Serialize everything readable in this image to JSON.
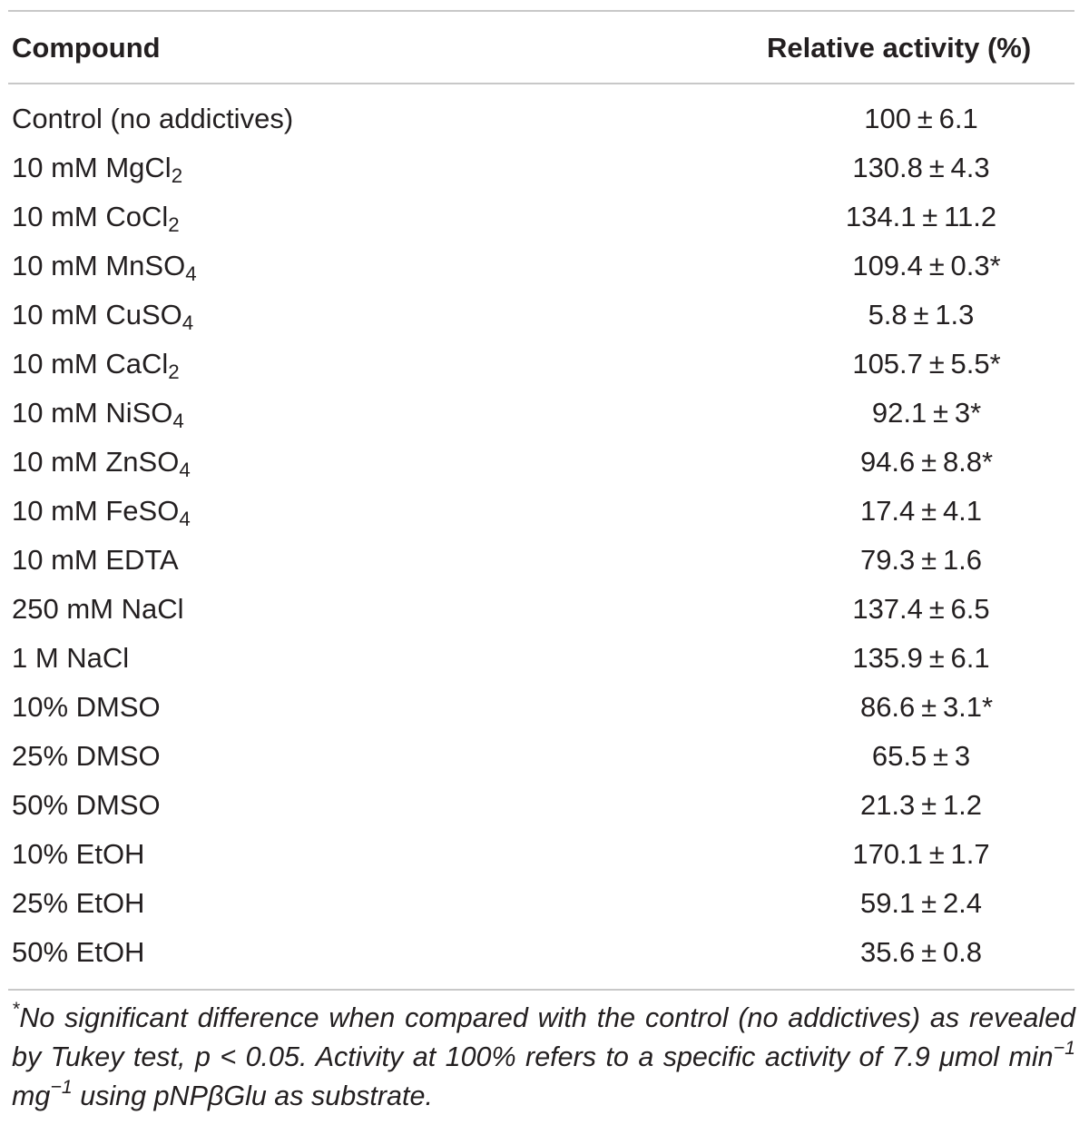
{
  "table": {
    "headers": {
      "compound": "Compound",
      "activity": "Relative activity (%)"
    },
    "rows": [
      {
        "compound": {
          "main": "Control (no addictives)",
          "sub": "",
          "tail": ""
        },
        "mean": "100",
        "sd": "6.1",
        "mark": ""
      },
      {
        "compound": {
          "main": "10 mM MgCl",
          "sub": "2",
          "tail": ""
        },
        "mean": "130.8",
        "sd": "4.3",
        "mark": ""
      },
      {
        "compound": {
          "main": "10 mM CoCl",
          "sub": "2",
          "tail": ""
        },
        "mean": "134.1",
        "sd": "11.2",
        "mark": ""
      },
      {
        "compound": {
          "main": "10 mM MnSO",
          "sub": "4",
          "tail": ""
        },
        "mean": "109.4",
        "sd": "0.3",
        "mark": "*"
      },
      {
        "compound": {
          "main": "10 mM CuSO",
          "sub": "4",
          "tail": ""
        },
        "mean": "5.8",
        "sd": "1.3",
        "mark": ""
      },
      {
        "compound": {
          "main": "10 mM CaCl",
          "sub": "2",
          "tail": ""
        },
        "mean": "105.7",
        "sd": "5.5",
        "mark": "*"
      },
      {
        "compound": {
          "main": "10 mM NiSO",
          "sub": "4",
          "tail": ""
        },
        "mean": "92.1",
        "sd": "3",
        "mark": "*"
      },
      {
        "compound": {
          "main": "10 mM ZnSO",
          "sub": "4",
          "tail": ""
        },
        "mean": "94.6",
        "sd": "8.8",
        "mark": "*"
      },
      {
        "compound": {
          "main": "10 mM FeSO",
          "sub": "4",
          "tail": ""
        },
        "mean": "17.4",
        "sd": "4.1",
        "mark": ""
      },
      {
        "compound": {
          "main": "10 mM EDTA",
          "sub": "",
          "tail": ""
        },
        "mean": "79.3",
        "sd": "1.6",
        "mark": ""
      },
      {
        "compound": {
          "main": "250 mM NaCl",
          "sub": "",
          "tail": ""
        },
        "mean": "137.4",
        "sd": "6.5",
        "mark": ""
      },
      {
        "compound": {
          "main": "1 M NaCl",
          "sub": "",
          "tail": ""
        },
        "mean": "135.9",
        "sd": "6.1",
        "mark": ""
      },
      {
        "compound": {
          "main": "10% DMSO",
          "sub": "",
          "tail": ""
        },
        "mean": "86.6",
        "sd": "3.1",
        "mark": "*"
      },
      {
        "compound": {
          "main": "25% DMSO",
          "sub": "",
          "tail": ""
        },
        "mean": "65.5",
        "sd": "3",
        "mark": ""
      },
      {
        "compound": {
          "main": "50% DMSO",
          "sub": "",
          "tail": ""
        },
        "mean": "21.3",
        "sd": "1.2",
        "mark": ""
      },
      {
        "compound": {
          "main": "10% EtOH",
          "sub": "",
          "tail": ""
        },
        "mean": "170.1",
        "sd": "1.7",
        "mark": ""
      },
      {
        "compound": {
          "main": "25% EtOH",
          "sub": "",
          "tail": ""
        },
        "mean": "59.1",
        "sd": "2.4",
        "mark": ""
      },
      {
        "compound": {
          "main": "50% EtOH",
          "sub": "",
          "tail": ""
        },
        "mean": "35.6",
        "sd": "0.8",
        "mark": ""
      }
    ],
    "pm_symbol": "±"
  },
  "footnote": {
    "marker": "*",
    "text_part1": "No significant difference when compared with the control (no addictives) as revealed by Tukey test, p < 0.05. Activity at 100% refers to a specific activity of 7.9 ",
    "mu": "μ",
    "text_part2": "mol min",
    "exp1": "−1",
    "text_part3": " mg",
    "exp2": "−1",
    "text_part4": " using pNP",
    "beta": "β",
    "text_part5": "Glu as substrate."
  },
  "colors": {
    "text": "#231f20",
    "rule": "#c8c8c8"
  }
}
